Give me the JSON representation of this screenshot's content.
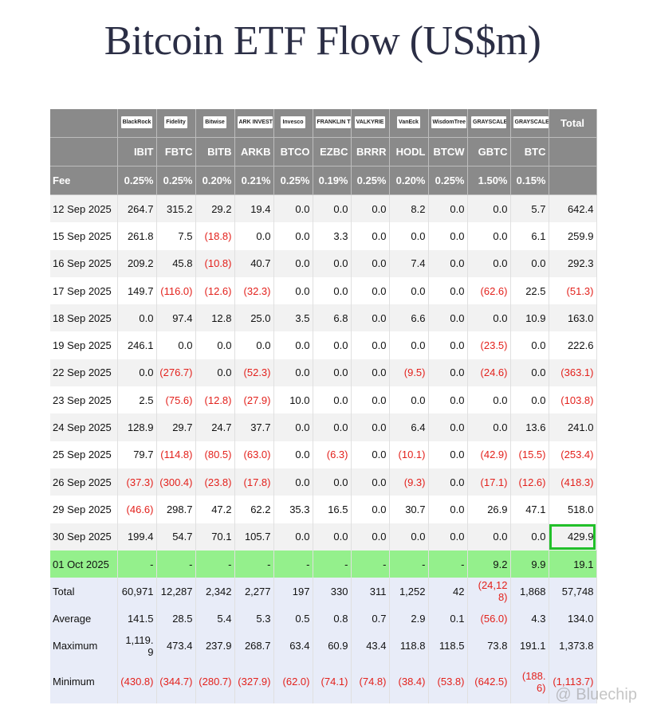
{
  "header": {
    "title": "Bitcoin ETF Flow (US$m)"
  },
  "table": {
    "logos": [
      "BlackRock",
      "Fidelity",
      "Bitwise",
      "ARK INVEST",
      "Invesco",
      "FRANKLIN TEMPLETON",
      "VALKYRIE",
      "VanEck",
      "WisdomTree",
      "GRAYSCALE",
      "GRAYSCALE"
    ],
    "total_header": "Total",
    "tickers": [
      "IBIT",
      "FBTC",
      "BITB",
      "ARKB",
      "BTCO",
      "EZBC",
      "BRRR",
      "HODL",
      "BTCW",
      "GBTC",
      "BTC"
    ],
    "fee_label": "Fee",
    "fees": [
      "0.25%",
      "0.25%",
      "0.20%",
      "0.21%",
      "0.25%",
      "0.19%",
      "0.25%",
      "0.20%",
      "0.25%",
      "1.50%",
      "0.15%"
    ],
    "rows": [
      {
        "label": "12 Sep 2025",
        "values": [
          "264.7",
          "315.2",
          "29.2",
          "19.4",
          "0.0",
          "0.0",
          "0.0",
          "8.2",
          "0.0",
          "0.0",
          "5.7",
          "642.4"
        ]
      },
      {
        "label": "15 Sep 2025",
        "values": [
          "261.8",
          "7.5",
          "(18.8)",
          "0.0",
          "0.0",
          "3.3",
          "0.0",
          "0.0",
          "0.0",
          "0.0",
          "6.1",
          "259.9"
        ]
      },
      {
        "label": "16 Sep 2025",
        "values": [
          "209.2",
          "45.8",
          "(10.8)",
          "40.7",
          "0.0",
          "0.0",
          "0.0",
          "7.4",
          "0.0",
          "0.0",
          "0.0",
          "292.3"
        ]
      },
      {
        "label": "17 Sep 2025",
        "values": [
          "149.7",
          "(116.0)",
          "(12.6)",
          "(32.3)",
          "0.0",
          "0.0",
          "0.0",
          "0.0",
          "0.0",
          "(62.6)",
          "22.5",
          "(51.3)"
        ]
      },
      {
        "label": "18 Sep 2025",
        "values": [
          "0.0",
          "97.4",
          "12.8",
          "25.0",
          "3.5",
          "6.8",
          "0.0",
          "6.6",
          "0.0",
          "0.0",
          "10.9",
          "163.0"
        ]
      },
      {
        "label": "19 Sep 2025",
        "values": [
          "246.1",
          "0.0",
          "0.0",
          "0.0",
          "0.0",
          "0.0",
          "0.0",
          "0.0",
          "0.0",
          "(23.5)",
          "0.0",
          "222.6"
        ]
      },
      {
        "label": "22 Sep 2025",
        "values": [
          "0.0",
          "(276.7)",
          "0.0",
          "(52.3)",
          "0.0",
          "0.0",
          "0.0",
          "(9.5)",
          "0.0",
          "(24.6)",
          "0.0",
          "(363.1)"
        ]
      },
      {
        "label": "23 Sep 2025",
        "values": [
          "2.5",
          "(75.6)",
          "(12.8)",
          "(27.9)",
          "10.0",
          "0.0",
          "0.0",
          "0.0",
          "0.0",
          "0.0",
          "0.0",
          "(103.8)"
        ]
      },
      {
        "label": "24 Sep 2025",
        "values": [
          "128.9",
          "29.7",
          "24.7",
          "37.7",
          "0.0",
          "0.0",
          "0.0",
          "6.4",
          "0.0",
          "0.0",
          "13.6",
          "241.0"
        ]
      },
      {
        "label": "25 Sep 2025",
        "values": [
          "79.7",
          "(114.8)",
          "(80.5)",
          "(63.0)",
          "0.0",
          "(6.3)",
          "0.0",
          "(10.1)",
          "0.0",
          "(42.9)",
          "(15.5)",
          "(253.4)"
        ]
      },
      {
        "label": "26 Sep 2025",
        "values": [
          "(37.3)",
          "(300.4)",
          "(23.8)",
          "(17.8)",
          "0.0",
          "0.0",
          "0.0",
          "(9.3)",
          "0.0",
          "(17.1)",
          "(12.6)",
          "(418.3)"
        ]
      },
      {
        "label": "29 Sep 2025",
        "values": [
          "(46.6)",
          "298.7",
          "47.2",
          "62.2",
          "35.3",
          "16.5",
          "0.0",
          "30.7",
          "0.0",
          "26.9",
          "47.1",
          "518.0"
        ]
      },
      {
        "label": "30 Sep 2025",
        "values": [
          "199.4",
          "54.7",
          "70.1",
          "105.7",
          "0.0",
          "0.0",
          "0.0",
          "0.0",
          "0.0",
          "0.0",
          "0.0",
          "429.9"
        ]
      },
      {
        "label": "01 Oct 2025",
        "values": [
          "-",
          "-",
          "-",
          "-",
          "-",
          "-",
          "-",
          "-",
          "-",
          "9.2",
          "9.9",
          "19.1"
        ]
      }
    ],
    "summary": [
      {
        "label": "Total",
        "values": [
          "60,971",
          "12,287",
          "2,342",
          "2,277",
          "197",
          "330",
          "311",
          "1,252",
          "42",
          "(24,128)",
          "1,868",
          "57,748"
        ]
      },
      {
        "label": "Average",
        "values": [
          "141.5",
          "28.5",
          "5.4",
          "5.3",
          "0.5",
          "0.8",
          "0.7",
          "2.9",
          "0.1",
          "(56.0)",
          "4.3",
          "134.0"
        ]
      },
      {
        "label": "Maximum",
        "values": [
          "1,119.9",
          "473.4",
          "237.9",
          "268.7",
          "63.4",
          "60.9",
          "43.4",
          "118.8",
          "118.5",
          "73.8",
          "191.1",
          "1,373.8"
        ]
      },
      {
        "label": "Minimum",
        "values": [
          "(430.8)",
          "(344.7)",
          "(280.7)",
          "(327.9)",
          "(62.0)",
          "(74.1)",
          "(74.8)",
          "(38.4)",
          "(53.8)",
          "(642.5)",
          "(188.6)",
          "(1,113.7)"
        ]
      }
    ]
  },
  "watermark": "@ Bluechip"
}
